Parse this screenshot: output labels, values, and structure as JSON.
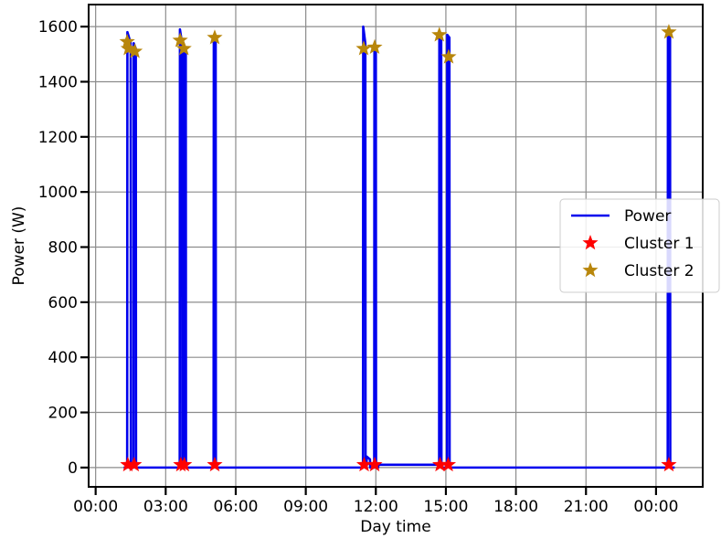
{
  "chart_data": {
    "type": "line",
    "xlabel": "Day time",
    "ylabel": "Power (W)",
    "xlim": [
      -0.3,
      26.0
    ],
    "ylim": [
      -70,
      1680
    ],
    "x_unit": "hours since 00:00 (day time)",
    "xticks": [
      {
        "value": 0,
        "label": "00:00"
      },
      {
        "value": 3,
        "label": "03:00"
      },
      {
        "value": 6,
        "label": "06:00"
      },
      {
        "value": 9,
        "label": "09:00"
      },
      {
        "value": 12,
        "label": "12:00"
      },
      {
        "value": 15,
        "label": "15:00"
      },
      {
        "value": 18,
        "label": "18:00"
      },
      {
        "value": 21,
        "label": "21:00"
      },
      {
        "value": 24,
        "label": "00:00"
      }
    ],
    "yticks": [
      0,
      200,
      400,
      600,
      800,
      1000,
      1200,
      1400,
      1600
    ],
    "grid": true,
    "legend_position": "right",
    "series": [
      {
        "name": "Power",
        "kind": "line",
        "color": "#0000ee",
        "points": [
          [
            1.2,
            0
          ],
          [
            1.35,
            0
          ],
          [
            1.36,
            1580
          ],
          [
            1.5,
            1540
          ],
          [
            1.51,
            0
          ],
          [
            1.62,
            0
          ],
          [
            1.63,
            1540
          ],
          [
            1.72,
            1520
          ],
          [
            1.73,
            0
          ],
          [
            3.6,
            0
          ],
          [
            3.61,
            1590
          ],
          [
            3.7,
            1540
          ],
          [
            3.71,
            0
          ],
          [
            3.78,
            0
          ],
          [
            3.79,
            1530
          ],
          [
            3.86,
            1520
          ],
          [
            3.87,
            0
          ],
          [
            5.05,
            0
          ],
          [
            5.06,
            1560
          ],
          [
            5.14,
            1550
          ],
          [
            5.15,
            0
          ],
          [
            11.45,
            0
          ],
          [
            11.46,
            1600
          ],
          [
            11.55,
            1540
          ],
          [
            11.56,
            0
          ],
          [
            11.6,
            0
          ],
          [
            11.61,
            40
          ],
          [
            11.75,
            30
          ],
          [
            11.76,
            0
          ],
          [
            11.93,
            0
          ],
          [
            11.94,
            1520
          ],
          [
            12.0,
            1510
          ],
          [
            12.01,
            0
          ],
          [
            12.1,
            0
          ],
          [
            12.11,
            10
          ],
          [
            14.7,
            10
          ],
          [
            14.71,
            0
          ],
          [
            14.72,
            1570
          ],
          [
            14.8,
            1550
          ],
          [
            14.81,
            0
          ],
          [
            15.05,
            0
          ],
          [
            15.06,
            1570
          ],
          [
            15.15,
            1560
          ],
          [
            15.16,
            0
          ],
          [
            24.5,
            0
          ],
          [
            24.51,
            1570
          ],
          [
            24.6,
            1560
          ],
          [
            24.61,
            0
          ],
          [
            24.8,
            0
          ]
        ]
      },
      {
        "name": "Cluster 1",
        "kind": "scatter",
        "marker": "star",
        "color": "#ff0000",
        "points": [
          [
            1.38,
            10
          ],
          [
            1.65,
            10
          ],
          [
            3.65,
            10
          ],
          [
            3.8,
            10
          ],
          [
            5.1,
            10
          ],
          [
            11.5,
            10
          ],
          [
            11.95,
            10
          ],
          [
            14.75,
            10
          ],
          [
            15.1,
            10
          ],
          [
            24.55,
            10
          ]
        ]
      },
      {
        "name": "Cluster 2",
        "kind": "scatter",
        "marker": "star",
        "color": "#b8860b",
        "points": [
          [
            1.35,
            1545
          ],
          [
            1.4,
            1520
          ],
          [
            1.68,
            1510
          ],
          [
            3.62,
            1550
          ],
          [
            3.78,
            1520
          ],
          [
            5.1,
            1560
          ],
          [
            11.48,
            1520
          ],
          [
            11.95,
            1525
          ],
          [
            14.72,
            1570
          ],
          [
            15.12,
            1490
          ],
          [
            24.55,
            1580
          ]
        ]
      }
    ]
  }
}
